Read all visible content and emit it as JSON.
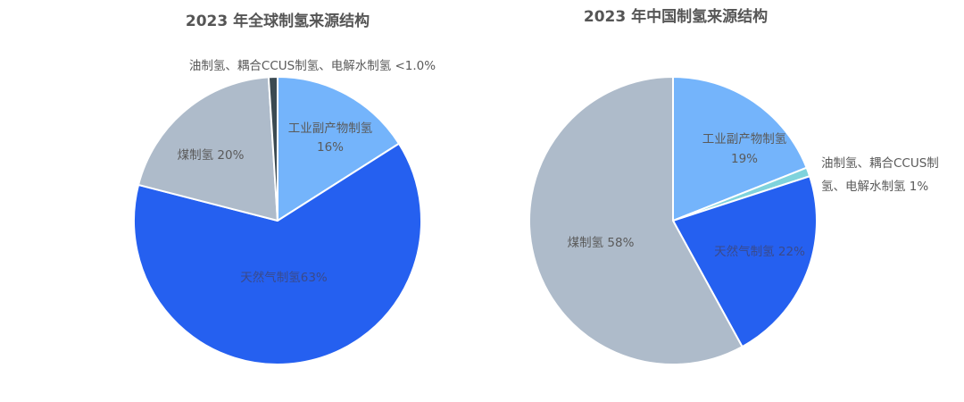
{
  "chart_data": [
    {
      "type": "pie",
      "title": "2023 年全球制氢来源结构",
      "slices": [
        {
          "name": "工业副产物制氢",
          "value": 16,
          "label_lines": [
            "工业副产物制氢",
            "16%"
          ],
          "color": "#74b4fb"
        },
        {
          "name": "天然气制氢",
          "value": 63,
          "label_lines": [
            "天然气制氢63%"
          ],
          "color": "#2560f0"
        },
        {
          "name": "煤制氢",
          "value": 20,
          "label_lines": [
            "煤制氢 20%"
          ],
          "color": "#aebbca"
        },
        {
          "name": "油制氢、耦合CCUS制氢、电解水制氢",
          "value": 1,
          "label_lines": [
            "油制氢、耦合CCUS制氢、电解水制氢 <1.0%"
          ],
          "color": "#3b4a52"
        }
      ]
    },
    {
      "type": "pie",
      "title": "2023 年中国制氢来源结构",
      "slices": [
        {
          "name": "工业副产物制氢",
          "value": 19,
          "label_lines": [
            "工业副产物制氢",
            "19%"
          ],
          "color": "#74b4fb"
        },
        {
          "name": "油制氢、耦合CCUS制氢、电解水制氢",
          "value": 1,
          "label_lines": [
            "油制氢、耦合CCUS制",
            "氢、电解水制氢 1%"
          ],
          "color": "#7fd3dc"
        },
        {
          "name": "天然气制氢",
          "value": 22,
          "label_lines": [
            "天然气制氢 22%"
          ],
          "color": "#2560f0"
        },
        {
          "name": "煤制氢",
          "value": 58,
          "label_lines": [
            "煤制氢 58%"
          ],
          "color": "#aebbca"
        }
      ]
    }
  ]
}
